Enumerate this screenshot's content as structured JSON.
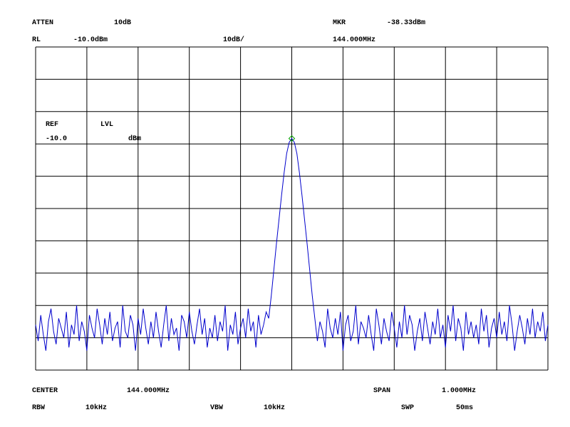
{
  "chart_data": {
    "type": "line",
    "labels": [
      "ATTEN",
      "10dB",
      "MKR",
      "-38.33dBm",
      "RL",
      "-10.0dBm",
      "10dB/",
      "144.000MHz",
      "REF",
      "LVL",
      "-10.0",
      "dBm",
      "CENTER",
      "144.000MHz",
      "SPAN",
      "1.000MHz",
      "RBW",
      "10kHz",
      "VBW",
      "10kHz",
      "SWP",
      "50ms"
    ],
    "xlim": [
      143.5,
      144.5
    ],
    "ylim": [
      -110,
      -10
    ],
    "xticks": [
      143.5,
      143.6,
      143.7,
      143.8,
      143.9,
      144.0,
      144.1,
      144.2,
      144.3,
      144.4,
      144.5
    ],
    "yticks": [
      -110,
      -100,
      -90,
      -80,
      -70,
      -60,
      -50,
      -40,
      -30,
      -20,
      -10
    ],
    "grid": true,
    "color": "#0000cc",
    "marker": {
      "x": 144.0,
      "y": -38.33,
      "color": "#00a000"
    },
    "x": [
      143.5,
      143.505,
      143.51,
      143.515,
      143.52,
      143.525,
      143.53,
      143.535,
      143.54,
      143.545,
      143.55,
      143.555,
      143.56,
      143.565,
      143.57,
      143.575,
      143.58,
      143.585,
      143.59,
      143.595,
      143.6,
      143.605,
      143.61,
      143.615,
      143.62,
      143.625,
      143.63,
      143.635,
      143.64,
      143.645,
      143.65,
      143.655,
      143.66,
      143.665,
      143.67,
      143.675,
      143.68,
      143.685,
      143.69,
      143.695,
      143.7,
      143.705,
      143.71,
      143.715,
      143.72,
      143.725,
      143.73,
      143.735,
      143.74,
      143.745,
      143.75,
      143.755,
      143.76,
      143.765,
      143.77,
      143.775,
      143.78,
      143.785,
      143.79,
      143.795,
      143.8,
      143.805,
      143.81,
      143.815,
      143.82,
      143.825,
      143.83,
      143.835,
      143.84,
      143.845,
      143.85,
      143.855,
      143.86,
      143.865,
      143.87,
      143.875,
      143.88,
      143.885,
      143.89,
      143.895,
      143.9,
      143.905,
      143.91,
      143.915,
      143.92,
      143.925,
      143.93,
      143.935,
      143.94,
      143.945,
      143.95,
      143.955,
      143.96,
      143.965,
      143.97,
      143.975,
      143.98,
      143.985,
      143.99,
      143.995,
      144.0,
      144.005,
      144.01,
      144.015,
      144.02,
      144.025,
      144.03,
      144.035,
      144.04,
      144.045,
      144.05,
      144.055,
      144.06,
      144.065,
      144.07,
      144.075,
      144.08,
      144.085,
      144.09,
      144.095,
      144.1,
      144.105,
      144.11,
      144.115,
      144.12,
      144.125,
      144.13,
      144.135,
      144.14,
      144.145,
      144.15,
      144.155,
      144.16,
      144.165,
      144.17,
      144.175,
      144.18,
      144.185,
      144.19,
      144.195,
      144.2,
      144.205,
      144.21,
      144.215,
      144.22,
      144.225,
      144.23,
      144.235,
      144.24,
      144.245,
      144.25,
      144.255,
      144.26,
      144.265,
      144.27,
      144.275,
      144.28,
      144.285,
      144.29,
      144.295,
      144.3,
      144.305,
      144.31,
      144.315,
      144.32,
      144.325,
      144.33,
      144.335,
      144.34,
      144.345,
      144.35,
      144.355,
      144.36,
      144.365,
      144.37,
      144.375,
      144.38,
      144.385,
      144.39,
      144.395,
      144.4,
      144.405,
      144.41,
      144.415,
      144.42,
      144.425,
      144.43,
      144.435,
      144.44,
      144.445,
      144.45,
      144.455,
      144.46,
      144.465,
      144.47,
      144.475,
      144.48,
      144.485,
      144.49,
      144.495,
      144.5
    ],
    "values": [
      -96,
      -101,
      -93,
      -99,
      -104,
      -95,
      -91,
      -98,
      -102,
      -94,
      -97,
      -100,
      -92,
      -103,
      -96,
      -99,
      -90,
      -101,
      -95,
      -98,
      -104,
      -93,
      -97,
      -100,
      -91,
      -96,
      -102,
      -94,
      -99,
      -92,
      -101,
      -97,
      -95,
      -103,
      -90,
      -98,
      -100,
      -93,
      -96,
      -104,
      -94,
      -99,
      -91,
      -97,
      -102,
      -95,
      -100,
      -92,
      -98,
      -103,
      -96,
      -90,
      -101,
      -94,
      -99,
      -97,
      -104,
      -93,
      -95,
      -100,
      -92,
      -98,
      -102,
      -96,
      -91,
      -99,
      -94,
      -103,
      -97,
      -100,
      -93,
      -101,
      -95,
      -98,
      -90,
      -104,
      -96,
      -99,
      -92,
      -102,
      -97,
      -94,
      -100,
      -91,
      -98,
      -95,
      -103,
      -93,
      -99,
      -96,
      -92,
      -94,
      -87,
      -79,
      -71,
      -63.5,
      -56,
      -49,
      -43,
      -39.5,
      -38.33,
      -39.5,
      -43,
      -49,
      -56,
      -63.5,
      -71,
      -79,
      -87,
      -94,
      -101,
      -95,
      -98,
      -103,
      -91,
      -97,
      -100,
      -94,
      -99,
      -92,
      -104,
      -96,
      -93,
      -101,
      -98,
      -90,
      -102,
      -95,
      -97,
      -100,
      -93,
      -99,
      -104,
      -91,
      -96,
      -102,
      -94,
      -98,
      -101,
      -92,
      -97,
      -103,
      -95,
      -100,
      -90,
      -99,
      -93,
      -96,
      -104,
      -98,
      -94,
      -101,
      -92,
      -97,
      -102,
      -95,
      -99,
      -91,
      -100,
      -96,
      -103,
      -93,
      -98,
      -90,
      -101,
      -94,
      -97,
      -104,
      -92,
      -99,
      -95,
      -100,
      -96,
      -102,
      -91,
      -98,
      -93,
      -103,
      -97,
      -94,
      -100,
      -92,
      -99,
      -95,
      -101,
      -90,
      -96,
      -104,
      -98,
      -93,
      -97,
      -102,
      -94,
      -99,
      -91,
      -100,
      -95,
      -98,
      -92,
      -101,
      -96
    ]
  }
}
